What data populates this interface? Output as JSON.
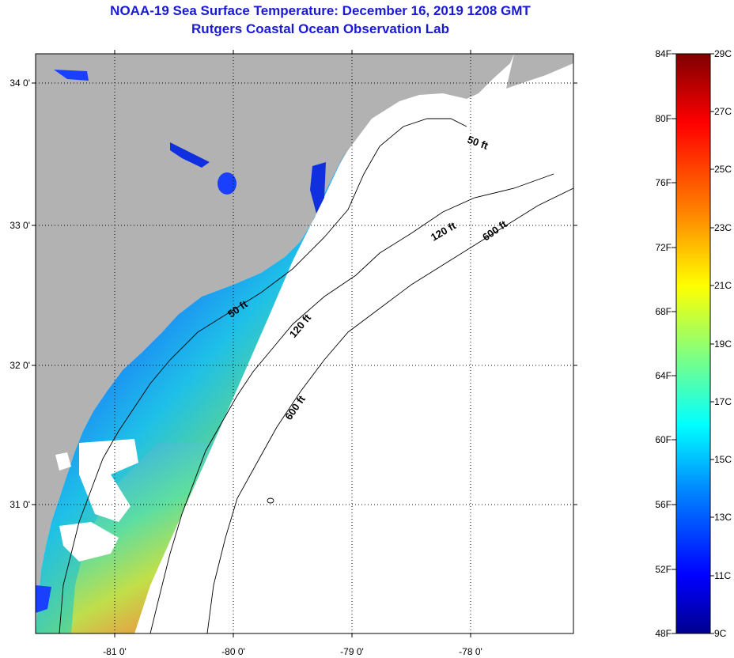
{
  "title": {
    "line1": "NOAA-19 Sea Surface Temperature:  December 16, 2019 1208 GMT",
    "line2": "Rutgers Coastal Ocean Observation Lab"
  },
  "map": {
    "lat_labels": [
      "34 0'",
      "33 0'",
      "32 0'",
      "31 0'"
    ],
    "lon_labels": [
      "-81 0'",
      "-80 0'",
      "-79 0'",
      "-78 0'"
    ],
    "contour_labels": {
      "c50_north": "50 ft",
      "c50_south": "50 ft",
      "c120_north": "120 ft",
      "c120_south": "120 ft",
      "c600_north": "600 ft",
      "c600_south": "600 ft"
    },
    "colors": {
      "land": "#b2b2b2",
      "cloud": "#ffffff",
      "frame": "#000000"
    }
  },
  "colorbar": {
    "fahrenheit_labels": [
      "84F",
      "80F",
      "76F",
      "72F",
      "68F",
      "64F",
      "60F",
      "56F",
      "52F",
      "48F"
    ],
    "celsius_labels": [
      "29C",
      "27C",
      "25C",
      "23C",
      "21C",
      "19C",
      "17C",
      "15C",
      "13C",
      "11C",
      "9C"
    ],
    "gradient": [
      "#7f0000",
      "#ff0000",
      "#ff8000",
      "#ffff00",
      "#80ff80",
      "#00ffff",
      "#0080ff",
      "#0000ff",
      "#00008f"
    ]
  }
}
